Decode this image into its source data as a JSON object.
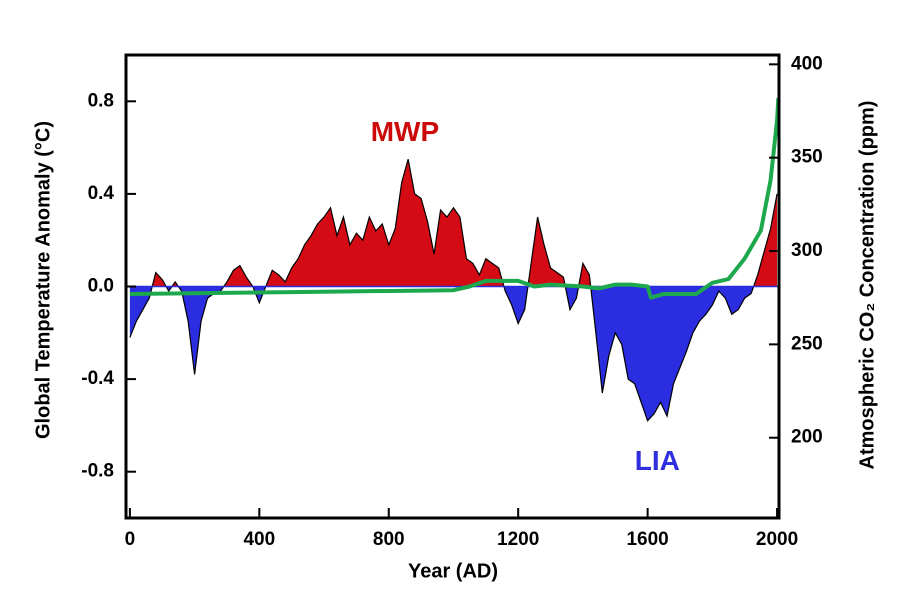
{
  "chart_data": {
    "type": "area-line",
    "xlabel": "Year (AD)",
    "ylabel": "Global Temperature Anomaly (°C)",
    "y2label": "Atmospheric CO₂ Concentration (ppm)",
    "annotations": [
      {
        "text": "MWP",
        "x": 850,
        "y": 0.66,
        "color": "#cc0a0a"
      },
      {
        "text": "LIA",
        "x": 1630,
        "y": -0.76,
        "color": "#2f2fe0"
      }
    ],
    "xlim": [
      -12,
      2006
    ],
    "xticks": [
      0,
      400,
      800,
      1200,
      1600,
      2000
    ],
    "ylim": [
      -1,
      1
    ],
    "yticks": [
      -0.8,
      -0.4,
      {
        "value": 0,
        "label": "0.0"
      },
      0.4,
      0.8
    ],
    "y2lim": [
      157,
      405
    ],
    "y2ticks": [
      200,
      250,
      300,
      350,
      400
    ],
    "x": [
      0,
      20,
      40,
      60,
      80,
      100,
      120,
      140,
      160,
      180,
      200,
      220,
      240,
      260,
      280,
      300,
      320,
      340,
      360,
      380,
      400,
      420,
      440,
      460,
      480,
      500,
      520,
      540,
      560,
      580,
      600,
      620,
      640,
      660,
      680,
      700,
      720,
      740,
      760,
      780,
      800,
      820,
      840,
      860,
      880,
      900,
      920,
      940,
      960,
      980,
      1000,
      1020,
      1040,
      1060,
      1080,
      1100,
      1120,
      1140,
      1160,
      1180,
      1200,
      1220,
      1240,
      1260,
      1280,
      1300,
      1320,
      1340,
      1360,
      1380,
      1400,
      1420,
      1440,
      1460,
      1480,
      1500,
      1520,
      1540,
      1560,
      1580,
      1600,
      1620,
      1640,
      1660,
      1680,
      1700,
      1720,
      1740,
      1760,
      1780,
      1800,
      1820,
      1840,
      1860,
      1880,
      1900,
      1920,
      1940,
      1960,
      1980,
      2000
    ],
    "series": [
      {
        "color_positive": "#d40a14",
        "color_negative": "#2b2de0",
        "outline": "#000000",
        "values": [
          -0.22,
          -0.15,
          -0.1,
          -0.05,
          0.06,
          0.03,
          -0.02,
          0.02,
          -0.02,
          -0.15,
          -0.38,
          -0.15,
          -0.05,
          -0.03,
          -0.02,
          0.02,
          0.07,
          0.09,
          0.04,
          0.0,
          -0.07,
          0.0,
          0.07,
          0.05,
          0.02,
          0.08,
          0.12,
          0.18,
          0.22,
          0.27,
          0.3,
          0.34,
          0.22,
          0.3,
          0.18,
          0.23,
          0.2,
          0.3,
          0.24,
          0.27,
          0.18,
          0.25,
          0.45,
          0.55,
          0.4,
          0.38,
          0.28,
          0.14,
          0.33,
          0.3,
          0.34,
          0.3,
          0.12,
          0.1,
          0.05,
          0.12,
          0.1,
          0.08,
          -0.02,
          -0.08,
          -0.16,
          -0.1,
          0.1,
          0.3,
          0.18,
          0.08,
          0.06,
          0.04,
          -0.1,
          -0.05,
          0.1,
          0.05,
          -0.2,
          -0.46,
          -0.3,
          -0.2,
          -0.25,
          -0.4,
          -0.42,
          -0.5,
          -0.58,
          -0.55,
          -0.5,
          -0.56,
          -0.42,
          -0.35,
          -0.28,
          -0.2,
          -0.15,
          -0.12,
          -0.08,
          -0.02,
          -0.05,
          -0.12,
          -0.1,
          -0.05,
          -0.03,
          0.05,
          0.15,
          0.25,
          0.4
        ]
      },
      {
        "axis": "y2",
        "color": "#1ea84e",
        "x": [
          0,
          500,
          1000,
          1050,
          1100,
          1200,
          1250,
          1300,
          1400,
          1450,
          1500,
          1550,
          1600,
          1610,
          1650,
          1700,
          1750,
          1800,
          1850,
          1900,
          1950,
          1980,
          2000,
          2004
        ],
        "values": [
          277,
          278,
          279,
          281,
          284,
          284,
          281,
          282,
          281,
          280,
          282,
          282,
          281,
          275,
          277,
          277,
          277,
          283,
          285,
          296,
          311,
          338,
          370,
          382
        ]
      }
    ]
  }
}
